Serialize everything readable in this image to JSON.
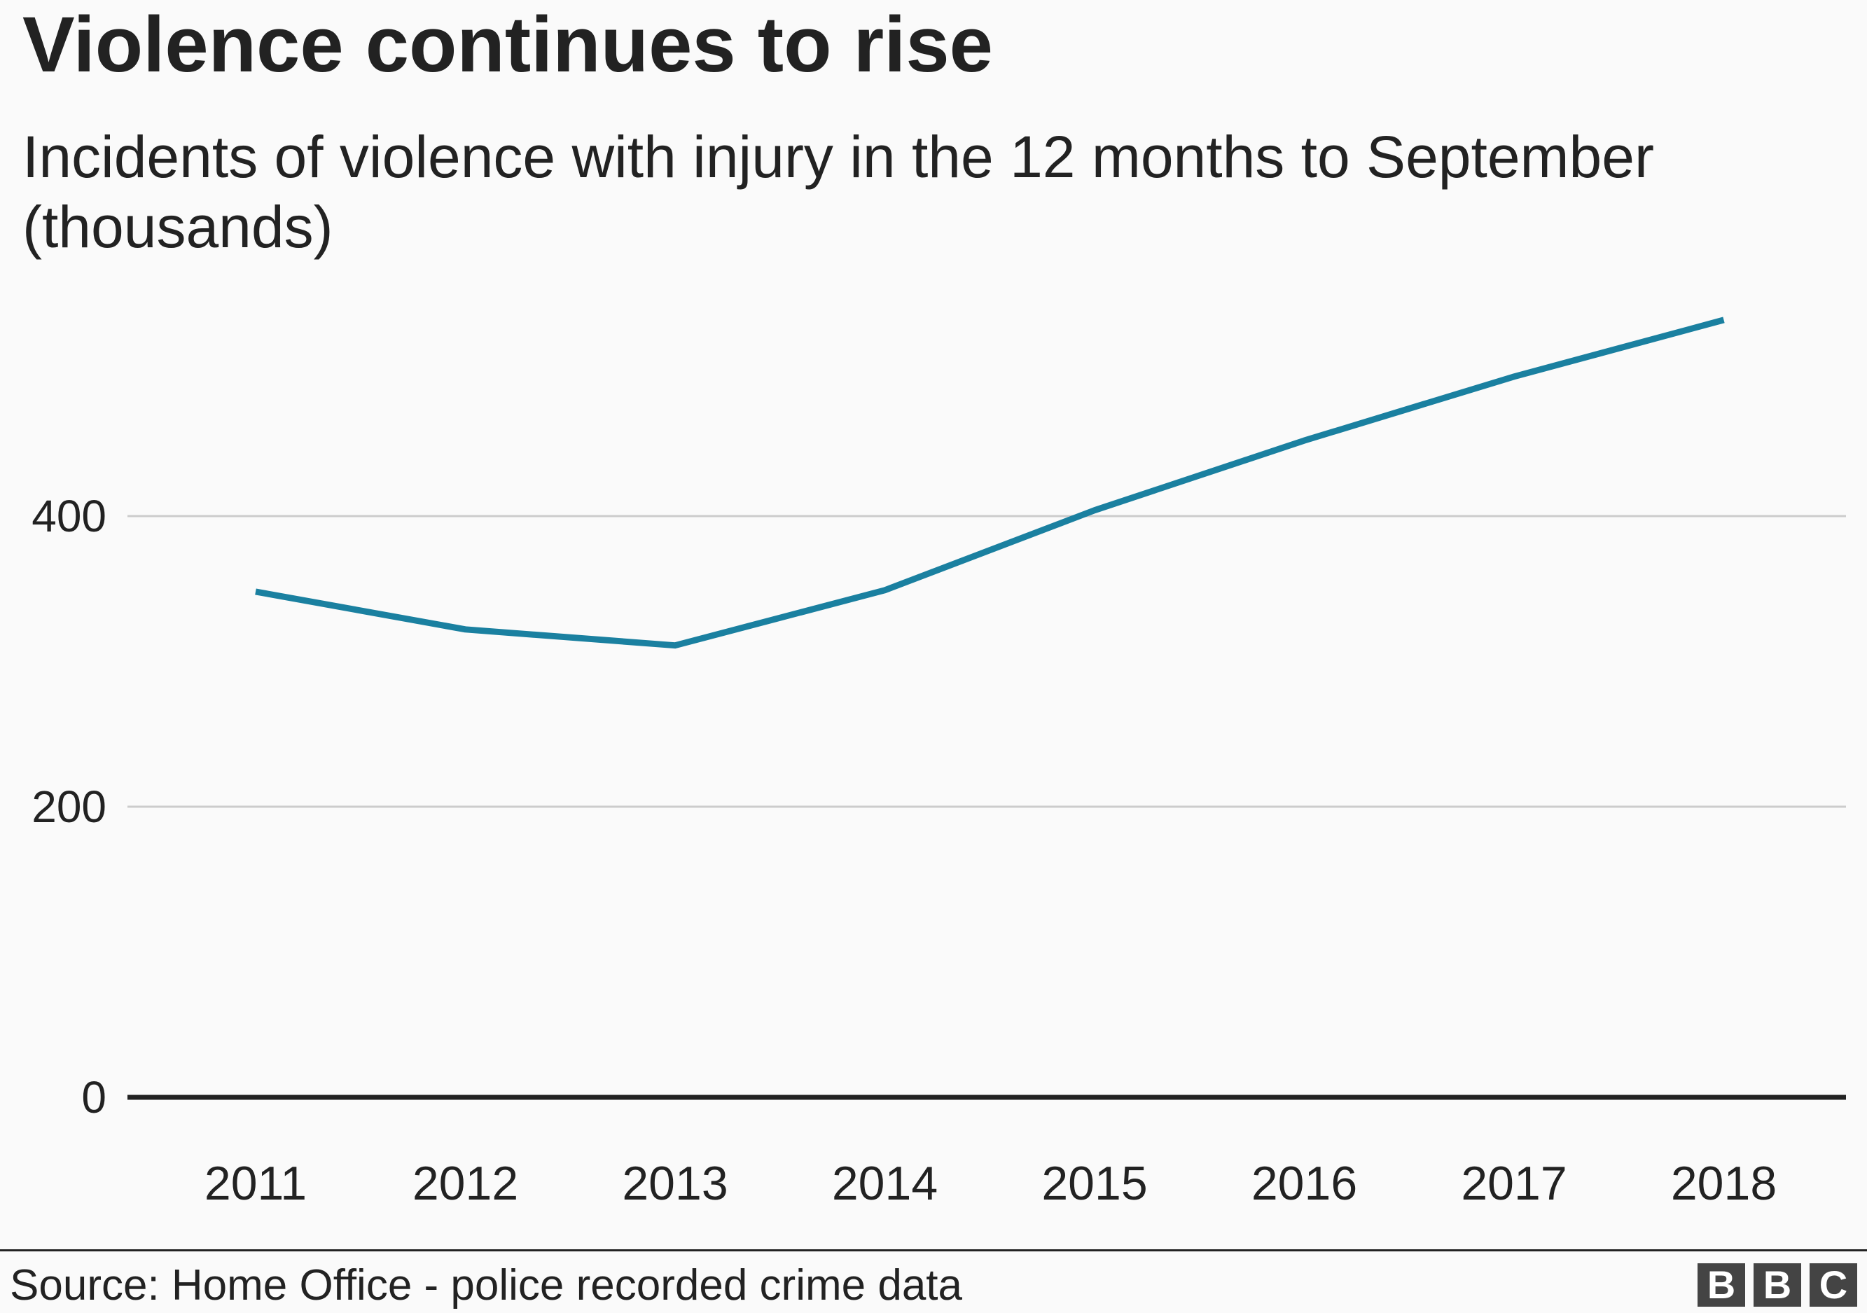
{
  "chart_data": {
    "type": "line",
    "title": "Violence continues to rise",
    "subtitle": "Incidents of violence with injury in the 12 months to September (thousands)",
    "xlabel": "",
    "ylabel": "",
    "categories": [
      "2011",
      "2012",
      "2013",
      "2014",
      "2015",
      "2016",
      "2017",
      "2018"
    ],
    "series": [
      {
        "values": [
          348,
          322,
          311,
          349,
          404,
          452,
          496,
          535
        ],
        "color": "#1a80a0"
      }
    ],
    "ylim": [
      0,
      580
    ],
    "yticks": [
      0,
      200,
      400
    ],
    "grid": true,
    "legend": "none"
  },
  "source": "Source: Home Office - police recorded crime data",
  "logo": {
    "letters": [
      "B",
      "B",
      "C"
    ]
  },
  "colors": {
    "line": "#1a80a0",
    "grid": "#cccccc",
    "baseline": "#222222",
    "background": "#fafafa"
  }
}
